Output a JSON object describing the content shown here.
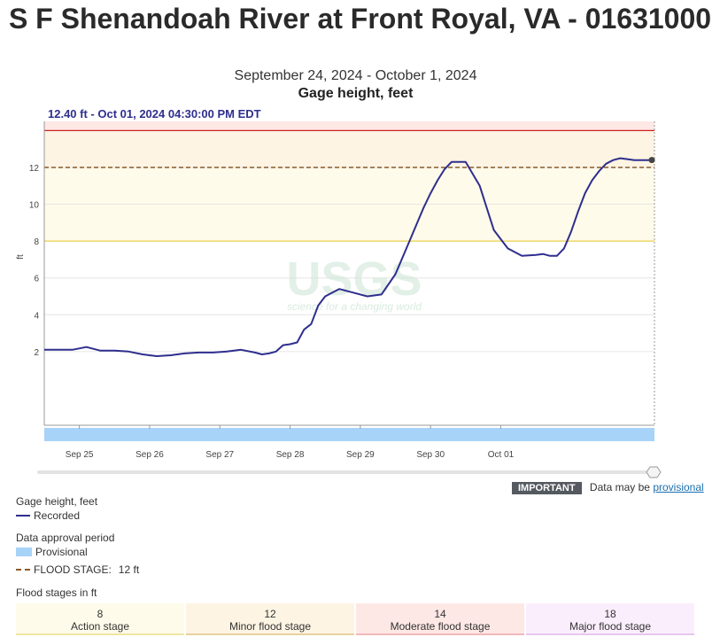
{
  "header": {
    "title": "S F Shenandoah River at Front Royal, VA - 01631000",
    "date_range": "September 24, 2024 - October 1, 2024",
    "parameter": "Gage height, feet"
  },
  "chart_data": {
    "type": "line",
    "tooltip": "12.40 ft - Oct 01, 2024 04:30:00 PM EDT",
    "ylabel": "ft",
    "ylim": [
      -2,
      14.5
    ],
    "yticks": [
      2,
      4,
      6,
      8,
      10,
      12
    ],
    "x_start": "Sep 24 12:00",
    "x_end": "Oct 01 16:30",
    "xticks": [
      "Sep 25",
      "Sep 26",
      "Sep 27",
      "Sep 28",
      "Sep 29",
      "Sep 30",
      "Oct 01"
    ],
    "series": [
      {
        "name": "Recorded",
        "color": "#2e2e8e",
        "x_days_since_sep24": [
          0.0,
          0.2,
          0.4,
          0.6,
          0.8,
          1.0,
          1.2,
          1.4,
          1.6,
          1.8,
          2.0,
          2.2,
          2.4,
          2.6,
          2.8,
          3.0,
          3.1,
          3.2,
          3.3,
          3.4,
          3.5,
          3.6,
          3.7,
          3.8,
          3.9,
          4.0,
          4.2,
          4.4,
          4.6,
          4.8,
          5.0,
          5.2,
          5.3,
          5.4,
          5.5,
          5.6,
          5.7,
          5.8,
          6.0,
          6.2,
          6.4,
          6.6,
          6.8,
          7.0,
          7.1,
          7.2,
          7.3,
          7.4,
          7.5,
          7.6,
          7.7,
          7.8,
          7.9,
          8.0,
          8.1,
          8.2,
          8.3,
          8.4,
          8.5,
          8.6,
          8.688
        ],
        "values": [
          2.1,
          2.1,
          2.1,
          2.25,
          2.05,
          2.05,
          2.0,
          1.85,
          1.75,
          1.8,
          1.9,
          1.95,
          1.95,
          2.0,
          2.1,
          1.95,
          1.85,
          1.9,
          2.0,
          2.35,
          2.4,
          2.5,
          3.2,
          3.5,
          4.5,
          5.0,
          5.4,
          5.2,
          5.0,
          5.1,
          6.2,
          8.0,
          8.9,
          9.8,
          10.6,
          11.3,
          11.9,
          12.3,
          12.3,
          11.0,
          8.6,
          7.6,
          7.2,
          7.25,
          7.3,
          7.2,
          7.2,
          7.6,
          8.5,
          9.6,
          10.6,
          11.3,
          11.8,
          12.2,
          12.4,
          12.5,
          12.45,
          12.4,
          12.4,
          12.4,
          12.4
        ]
      }
    ],
    "flood_stage_line": {
      "value": 12,
      "label": "FLOOD STAGE:",
      "value_label": "12 ft"
    },
    "stage_bands": [
      {
        "from": 8,
        "to": 12,
        "color": "#fffbea"
      },
      {
        "from": 12,
        "to": 14,
        "color": "#fdf4e3"
      },
      {
        "from": 14,
        "to": 14.5,
        "color": "#fde8e6"
      }
    ],
    "action_line_color": "#ecd86a",
    "moderate_line_color": "#d02020",
    "provisional_bar_color": "#a8d3f8",
    "watermark": {
      "text": "USGS",
      "tagline": "science for a changing world"
    },
    "grid": true
  },
  "notice": {
    "badge": "IMPORTANT",
    "text": "Data may be",
    "link": "provisional"
  },
  "legend": {
    "parameter_title": "Gage height, feet",
    "recorded_label": "Recorded",
    "approval_title": "Data approval period",
    "provisional_label": "Provisional",
    "flood_stage_label": "FLOOD STAGE:",
    "flood_stage_value": "12 ft",
    "stages_title": "Flood stages in ft"
  },
  "flood_stages": [
    {
      "value": "8",
      "name": "Action stage",
      "bg": "#fffbea",
      "border": "#f0e6a0"
    },
    {
      "value": "12",
      "name": "Minor flood stage",
      "bg": "#fdf4e3",
      "border": "#e9d0a0"
    },
    {
      "value": "14",
      "name": "Moderate flood stage",
      "bg": "#fde8e6",
      "border": "#f2b8b8"
    },
    {
      "value": "18",
      "name": "Major flood stage",
      "bg": "#fbeefc",
      "border": "#e8c6ef"
    }
  ]
}
